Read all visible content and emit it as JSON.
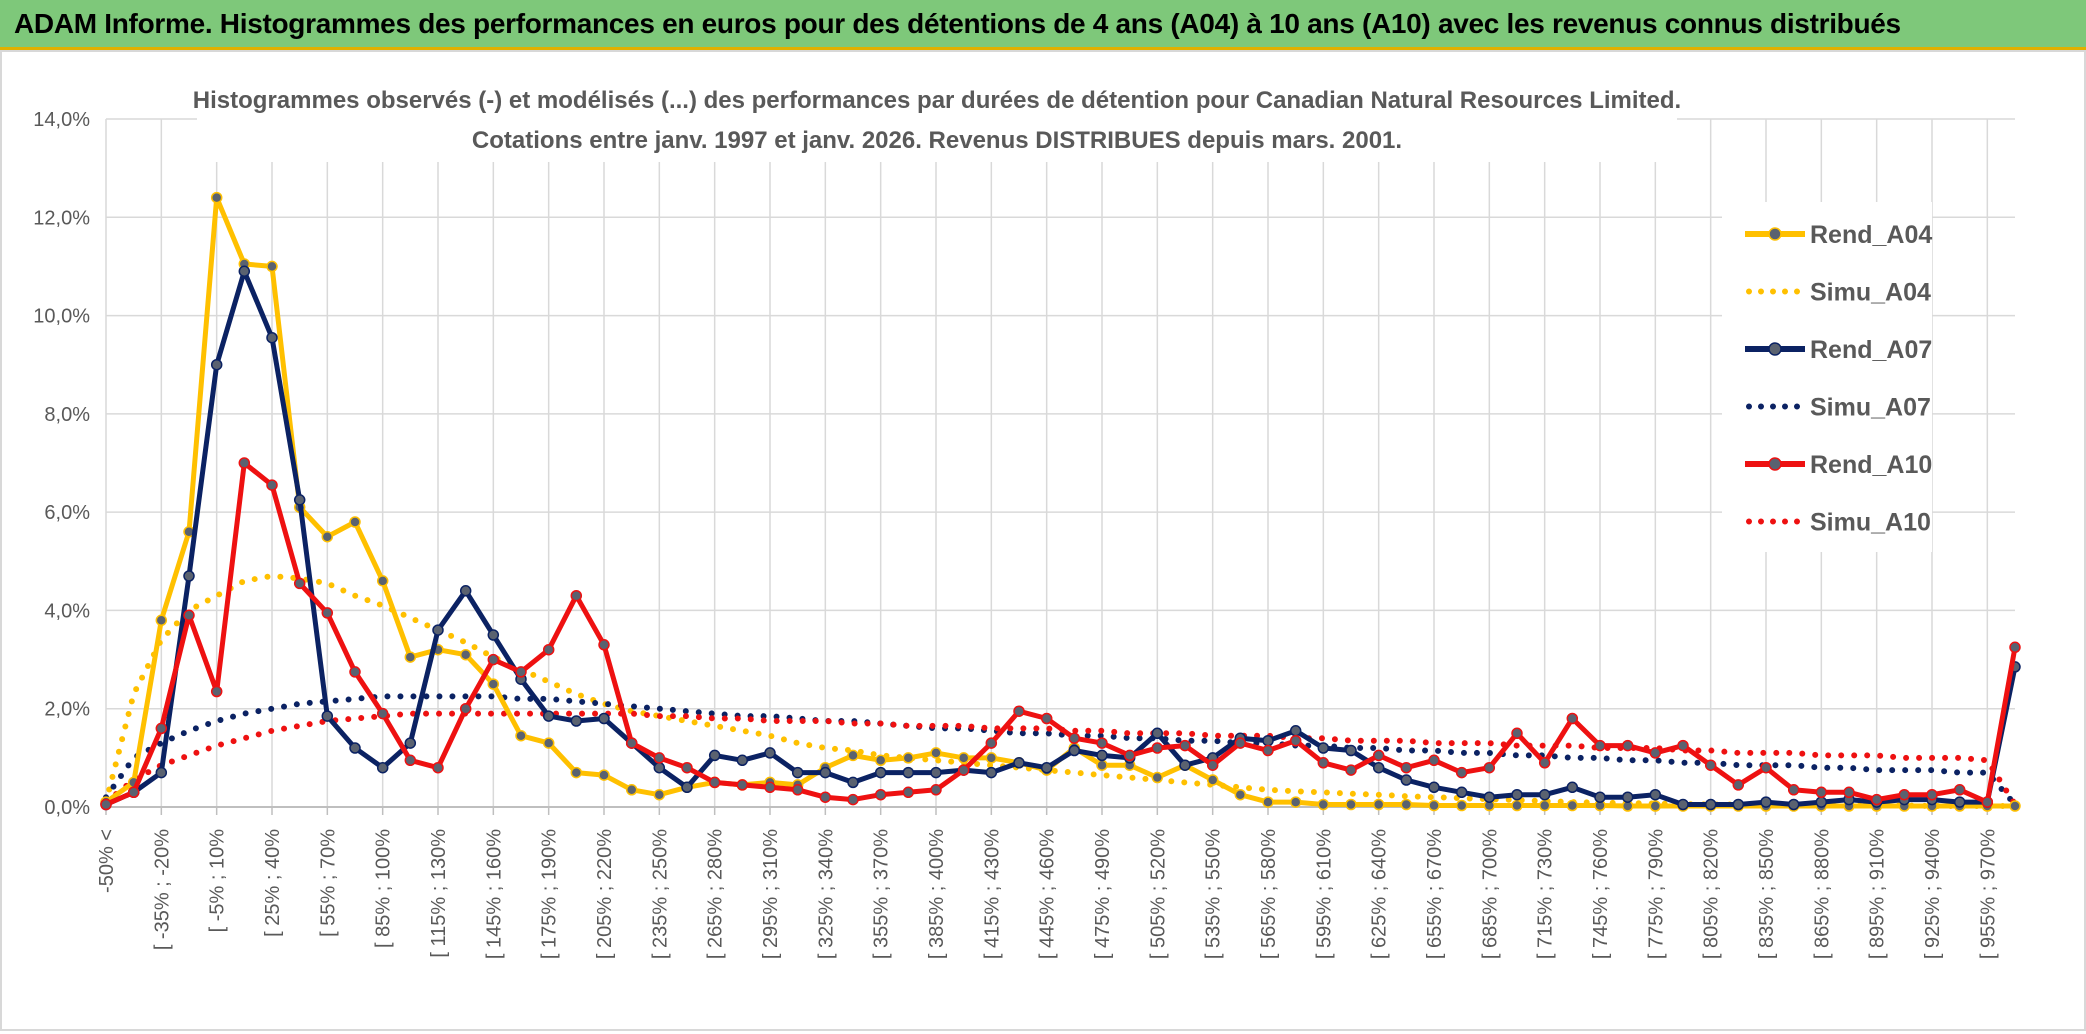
{
  "header": {
    "title": "ADAM Informe. Histogrammes des performances en euros pour des détentions de 4 ans (A04) à 10 ans (A10) avec les revenus connus distribués"
  },
  "chart_data": {
    "type": "line",
    "title_line1": "Histogrammes observés (-) et modélisés (...) des performances par durées de détention pour Canadian Natural Resources Limited.",
    "title_line2": "Cotations entre janv. 1997 et janv. 2026. Revenus DISTRIBUES depuis mars. 2001.",
    "xlabel": "",
    "ylabel": "",
    "ylim": [
      0,
      14
    ],
    "y_ticks": [
      "0,0%",
      "2,0%",
      "4,0%",
      "6,0%",
      "8,0%",
      "10,0%",
      "12,0%",
      "14,0%"
    ],
    "x_tick_labels": [
      "-50% <",
      "[ -35% ; -20%",
      "[ -5% ; 10%",
      "[ 25% ; 40%",
      "[ 55% ; 70%",
      "[ 85% ; 100%",
      "[ 115% ; 130%",
      "[ 145% ; 160%",
      "[ 175% ; 190%",
      "[ 205% ; 220%",
      "[ 235% ; 250%",
      "[ 265% ; 280%",
      "[ 295% ; 310%",
      "[ 325% ; 340%",
      "[ 355% ; 370%",
      "[ 385% ; 400%",
      "[ 415% ; 430%",
      "[ 445% ; 460%",
      "[ 475% ; 490%",
      "[ 505% ; 520%",
      "[ 535% ; 550%",
      "[ 565% ; 580%",
      "[ 595% ; 610%",
      "[ 625% ; 640%",
      "[ 655% ; 670%",
      "[ 685% ; 700%",
      "[ 715% ; 730%",
      "[ 745% ; 760%",
      "[ 775% ; 790%",
      "[ 805% ; 820%",
      "[ 835% ; 850%",
      "[ 865% ; 880%",
      "[ 895% ; 910%",
      "[ 925% ; 940%",
      "[ 955% ; 970%"
    ],
    "n_points": 70,
    "legend_position": "right",
    "colors": {
      "yellow": "#ffc000",
      "navy": "#0b2263",
      "red": "#ee1111",
      "grid": "#d9d9d9",
      "axis_text": "#595959"
    },
    "series": [
      {
        "name": "Rend_A04",
        "style": "solid",
        "color": "#ffc000",
        "values": [
          0.1,
          0.5,
          3.8,
          5.6,
          12.4,
          11.05,
          11.0,
          6.1,
          5.5,
          5.8,
          4.6,
          3.05,
          3.2,
          3.1,
          2.5,
          1.45,
          1.3,
          0.7,
          0.65,
          0.35,
          0.25,
          0.4,
          0.5,
          0.45,
          0.5,
          0.45,
          0.8,
          1.05,
          0.95,
          1.0,
          1.1,
          1.0,
          1.0,
          0.9,
          0.75,
          1.2,
          0.85,
          0.85,
          0.6,
          0.85,
          0.55,
          0.25,
          0.1,
          0.1,
          0.05,
          0.05,
          0.05,
          0.05,
          0.03,
          0.03,
          0.03,
          0.03,
          0.03,
          0.03,
          0.03,
          0.02,
          0.02,
          0.02,
          0.02,
          0.02,
          0.02,
          0.02,
          0.02,
          0.02,
          0.02,
          0.02,
          0.02,
          0.02,
          0.02,
          0.02
        ]
      },
      {
        "name": "Simu_A04",
        "style": "dotted",
        "color": "#ffc000",
        "values": [
          0.1,
          2.3,
          3.4,
          4.0,
          4.3,
          4.6,
          4.7,
          4.65,
          4.55,
          4.3,
          4.1,
          3.85,
          3.6,
          3.35,
          3.05,
          2.8,
          2.55,
          2.3,
          2.1,
          1.95,
          1.85,
          1.75,
          1.65,
          1.55,
          1.45,
          1.3,
          1.2,
          1.15,
          1.05,
          1.0,
          0.95,
          0.9,
          0.85,
          0.8,
          0.75,
          0.7,
          0.65,
          0.6,
          0.55,
          0.5,
          0.45,
          0.4,
          0.35,
          0.32,
          0.3,
          0.27,
          0.25,
          0.22,
          0.2,
          0.18,
          0.16,
          0.14,
          0.12,
          0.1,
          0.09,
          0.08,
          0.07,
          0.06,
          0.05,
          0.05,
          0.04,
          0.04,
          0.03,
          0.03,
          0.03,
          0.03,
          0.02,
          0.02,
          0.02,
          0.02
        ]
      },
      {
        "name": "Rend_A07",
        "style": "solid",
        "color": "#0b2263",
        "values": [
          0.05,
          0.3,
          0.7,
          4.7,
          9.0,
          10.9,
          9.55,
          6.25,
          1.85,
          1.2,
          0.8,
          1.3,
          3.6,
          4.4,
          3.5,
          2.6,
          1.85,
          1.75,
          1.8,
          1.3,
          0.8,
          0.4,
          1.05,
          0.95,
          1.1,
          0.7,
          0.7,
          0.5,
          0.7,
          0.7,
          0.7,
          0.75,
          0.7,
          0.9,
          0.8,
          1.15,
          1.05,
          1.0,
          1.5,
          0.85,
          1.0,
          1.4,
          1.35,
          1.55,
          1.2,
          1.15,
          0.8,
          0.55,
          0.4,
          0.3,
          0.2,
          0.25,
          0.25,
          0.4,
          0.2,
          0.2,
          0.25,
          0.05,
          0.05,
          0.05,
          0.1,
          0.05,
          0.1,
          0.15,
          0.1,
          0.15,
          0.15,
          0.1,
          0.1,
          2.85
        ]
      },
      {
        "name": "Simu_A07",
        "style": "dotted",
        "color": "#0b2263",
        "values": [
          0.2,
          1.0,
          1.3,
          1.55,
          1.75,
          1.9,
          2.0,
          2.1,
          2.15,
          2.2,
          2.25,
          2.25,
          2.25,
          2.25,
          2.25,
          2.2,
          2.2,
          2.15,
          2.1,
          2.05,
          2.0,
          1.95,
          1.9,
          1.85,
          1.85,
          1.8,
          1.75,
          1.75,
          1.7,
          1.65,
          1.6,
          1.6,
          1.55,
          1.5,
          1.5,
          1.45,
          1.45,
          1.4,
          1.4,
          1.35,
          1.35,
          1.3,
          1.3,
          1.25,
          1.25,
          1.2,
          1.2,
          1.15,
          1.15,
          1.1,
          1.1,
          1.05,
          1.05,
          1.0,
          1.0,
          0.95,
          0.95,
          0.9,
          0.9,
          0.85,
          0.85,
          0.85,
          0.8,
          0.8,
          0.75,
          0.75,
          0.75,
          0.7,
          0.7,
          0.05
        ]
      },
      {
        "name": "Rend_A10",
        "style": "solid",
        "color": "#ee1111",
        "values": [
          0.05,
          0.3,
          1.6,
          3.9,
          2.35,
          7.0,
          6.55,
          4.55,
          3.95,
          2.75,
          1.9,
          0.95,
          0.8,
          2.0,
          3.0,
          2.75,
          3.2,
          4.3,
          3.3,
          1.3,
          1.0,
          0.8,
          0.5,
          0.45,
          0.4,
          0.35,
          0.2,
          0.15,
          0.25,
          0.3,
          0.35,
          0.75,
          1.3,
          1.95,
          1.8,
          1.4,
          1.3,
          1.05,
          1.2,
          1.25,
          0.85,
          1.3,
          1.15,
          1.35,
          0.9,
          0.75,
          1.05,
          0.8,
          0.95,
          0.7,
          0.8,
          1.5,
          0.9,
          1.8,
          1.25,
          1.25,
          1.1,
          1.25,
          0.85,
          0.45,
          0.8,
          0.35,
          0.3,
          0.3,
          0.15,
          0.25,
          0.25,
          0.35,
          0.1,
          3.25
        ]
      },
      {
        "name": "Simu_A10",
        "style": "dotted",
        "color": "#ee1111",
        "values": [
          0.1,
          0.55,
          0.85,
          1.05,
          1.25,
          1.4,
          1.55,
          1.65,
          1.75,
          1.8,
          1.85,
          1.9,
          1.9,
          1.9,
          1.9,
          1.9,
          1.9,
          1.9,
          1.9,
          1.9,
          1.85,
          1.85,
          1.8,
          1.8,
          1.75,
          1.75,
          1.75,
          1.7,
          1.7,
          1.65,
          1.65,
          1.65,
          1.6,
          1.6,
          1.6,
          1.55,
          1.55,
          1.5,
          1.5,
          1.5,
          1.45,
          1.45,
          1.45,
          1.4,
          1.4,
          1.35,
          1.35,
          1.35,
          1.3,
          1.3,
          1.3,
          1.25,
          1.25,
          1.25,
          1.2,
          1.2,
          1.2,
          1.15,
          1.15,
          1.1,
          1.1,
          1.1,
          1.05,
          1.05,
          1.05,
          1.0,
          1.0,
          1.0,
          0.95,
          0.05
        ]
      }
    ]
  }
}
